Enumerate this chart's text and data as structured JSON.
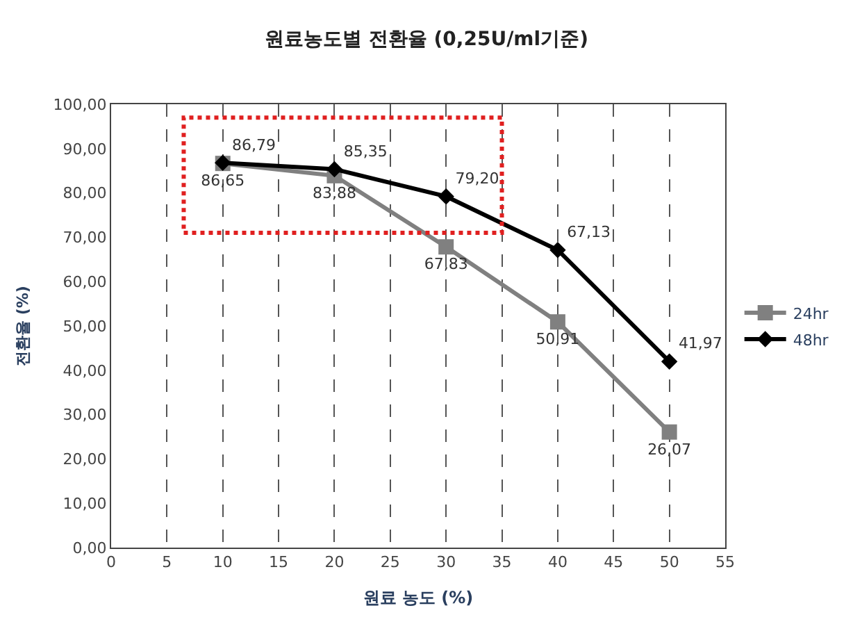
{
  "chart_data": {
    "type": "line",
    "title": "원료농도별 전환율 (0,25U/ml기준)",
    "xlabel": "원료 농도 (%)",
    "ylabel": "전환율 (%)",
    "x": [
      10,
      20,
      30,
      40,
      50
    ],
    "series": [
      {
        "name": "24hr",
        "color": "#808080",
        "marker": "square",
        "values": [
          86.65,
          83.88,
          67.83,
          50.91,
          26.07
        ],
        "value_labels": [
          "86,65",
          "83,88",
          "67,83",
          "50,91",
          "26,07"
        ]
      },
      {
        "name": "48hr",
        "color": "#000000",
        "marker": "diamond",
        "values": [
          86.79,
          85.35,
          79.2,
          67.13,
          41.97
        ],
        "value_labels": [
          "86,79",
          "85,35",
          "79,20",
          "67,13",
          "41,97"
        ]
      }
    ],
    "xlim": [
      0,
      55
    ],
    "xticks": [
      0,
      5,
      10,
      15,
      20,
      25,
      30,
      35,
      40,
      45,
      50,
      55
    ],
    "ylim": [
      0,
      100
    ],
    "yticks": [
      {
        "value": 0,
        "label": "0,00"
      },
      {
        "value": 10,
        "label": "10,00"
      },
      {
        "value": 20,
        "label": "20,00"
      },
      {
        "value": 30,
        "label": "30,00"
      },
      {
        "value": 40,
        "label": "40,00"
      },
      {
        "value": 50,
        "label": "50,00"
      },
      {
        "value": 60,
        "label": "60,00"
      },
      {
        "value": 70,
        "label": "70,00"
      },
      {
        "value": 80,
        "label": "80,00"
      },
      {
        "value": 90,
        "label": "90,00"
      },
      {
        "value": 100,
        "label": "100,00"
      }
    ],
    "grid": "x",
    "legend": "right",
    "line_style": "solid"
  }
}
